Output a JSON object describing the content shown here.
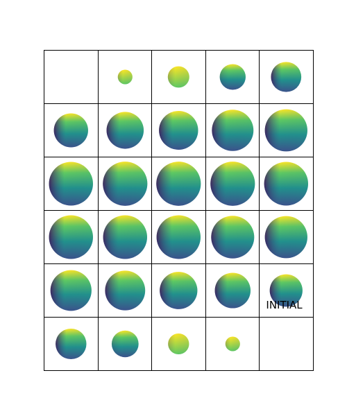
{
  "grid": {
    "rows": 6,
    "cols": 5
  },
  "panels": [
    {
      "filled": false
    },
    {
      "filled": true,
      "size": 0.3
    },
    {
      "filled": true,
      "size": 0.44
    },
    {
      "filled": true,
      "size": 0.53
    },
    {
      "filled": true,
      "size": 0.62
    },
    {
      "filled": true,
      "size": 0.7
    },
    {
      "filled": true,
      "size": 0.76
    },
    {
      "filled": true,
      "size": 0.8
    },
    {
      "filled": true,
      "size": 0.85
    },
    {
      "filled": true,
      "size": 0.87
    },
    {
      "filled": true,
      "size": 0.9
    },
    {
      "filled": true,
      "size": 0.91
    },
    {
      "filled": true,
      "size": 0.91
    },
    {
      "filled": true,
      "size": 0.91
    },
    {
      "filled": true,
      "size": 0.9
    },
    {
      "filled": true,
      "size": 0.9
    },
    {
      "filled": true,
      "size": 0.9
    },
    {
      "filled": true,
      "size": 0.9
    },
    {
      "filled": true,
      "size": 0.88
    },
    {
      "filled": true,
      "size": 0.87
    },
    {
      "filled": true,
      "size": 0.84
    },
    {
      "filled": true,
      "size": 0.82
    },
    {
      "filled": true,
      "size": 0.77
    },
    {
      "filled": true,
      "size": 0.73
    },
    {
      "filled": true,
      "size": 0.67,
      "label": "INITIAL"
    },
    {
      "filled": true,
      "size": 0.63
    },
    {
      "filled": true,
      "size": 0.55
    },
    {
      "filled": true,
      "size": 0.43
    },
    {
      "filled": true,
      "size": 0.3
    },
    {
      "filled": false
    }
  ],
  "colors": {
    "viridis": [
      "#440154",
      "#3b528b",
      "#21918c",
      "#5ec962",
      "#fde725"
    ]
  }
}
